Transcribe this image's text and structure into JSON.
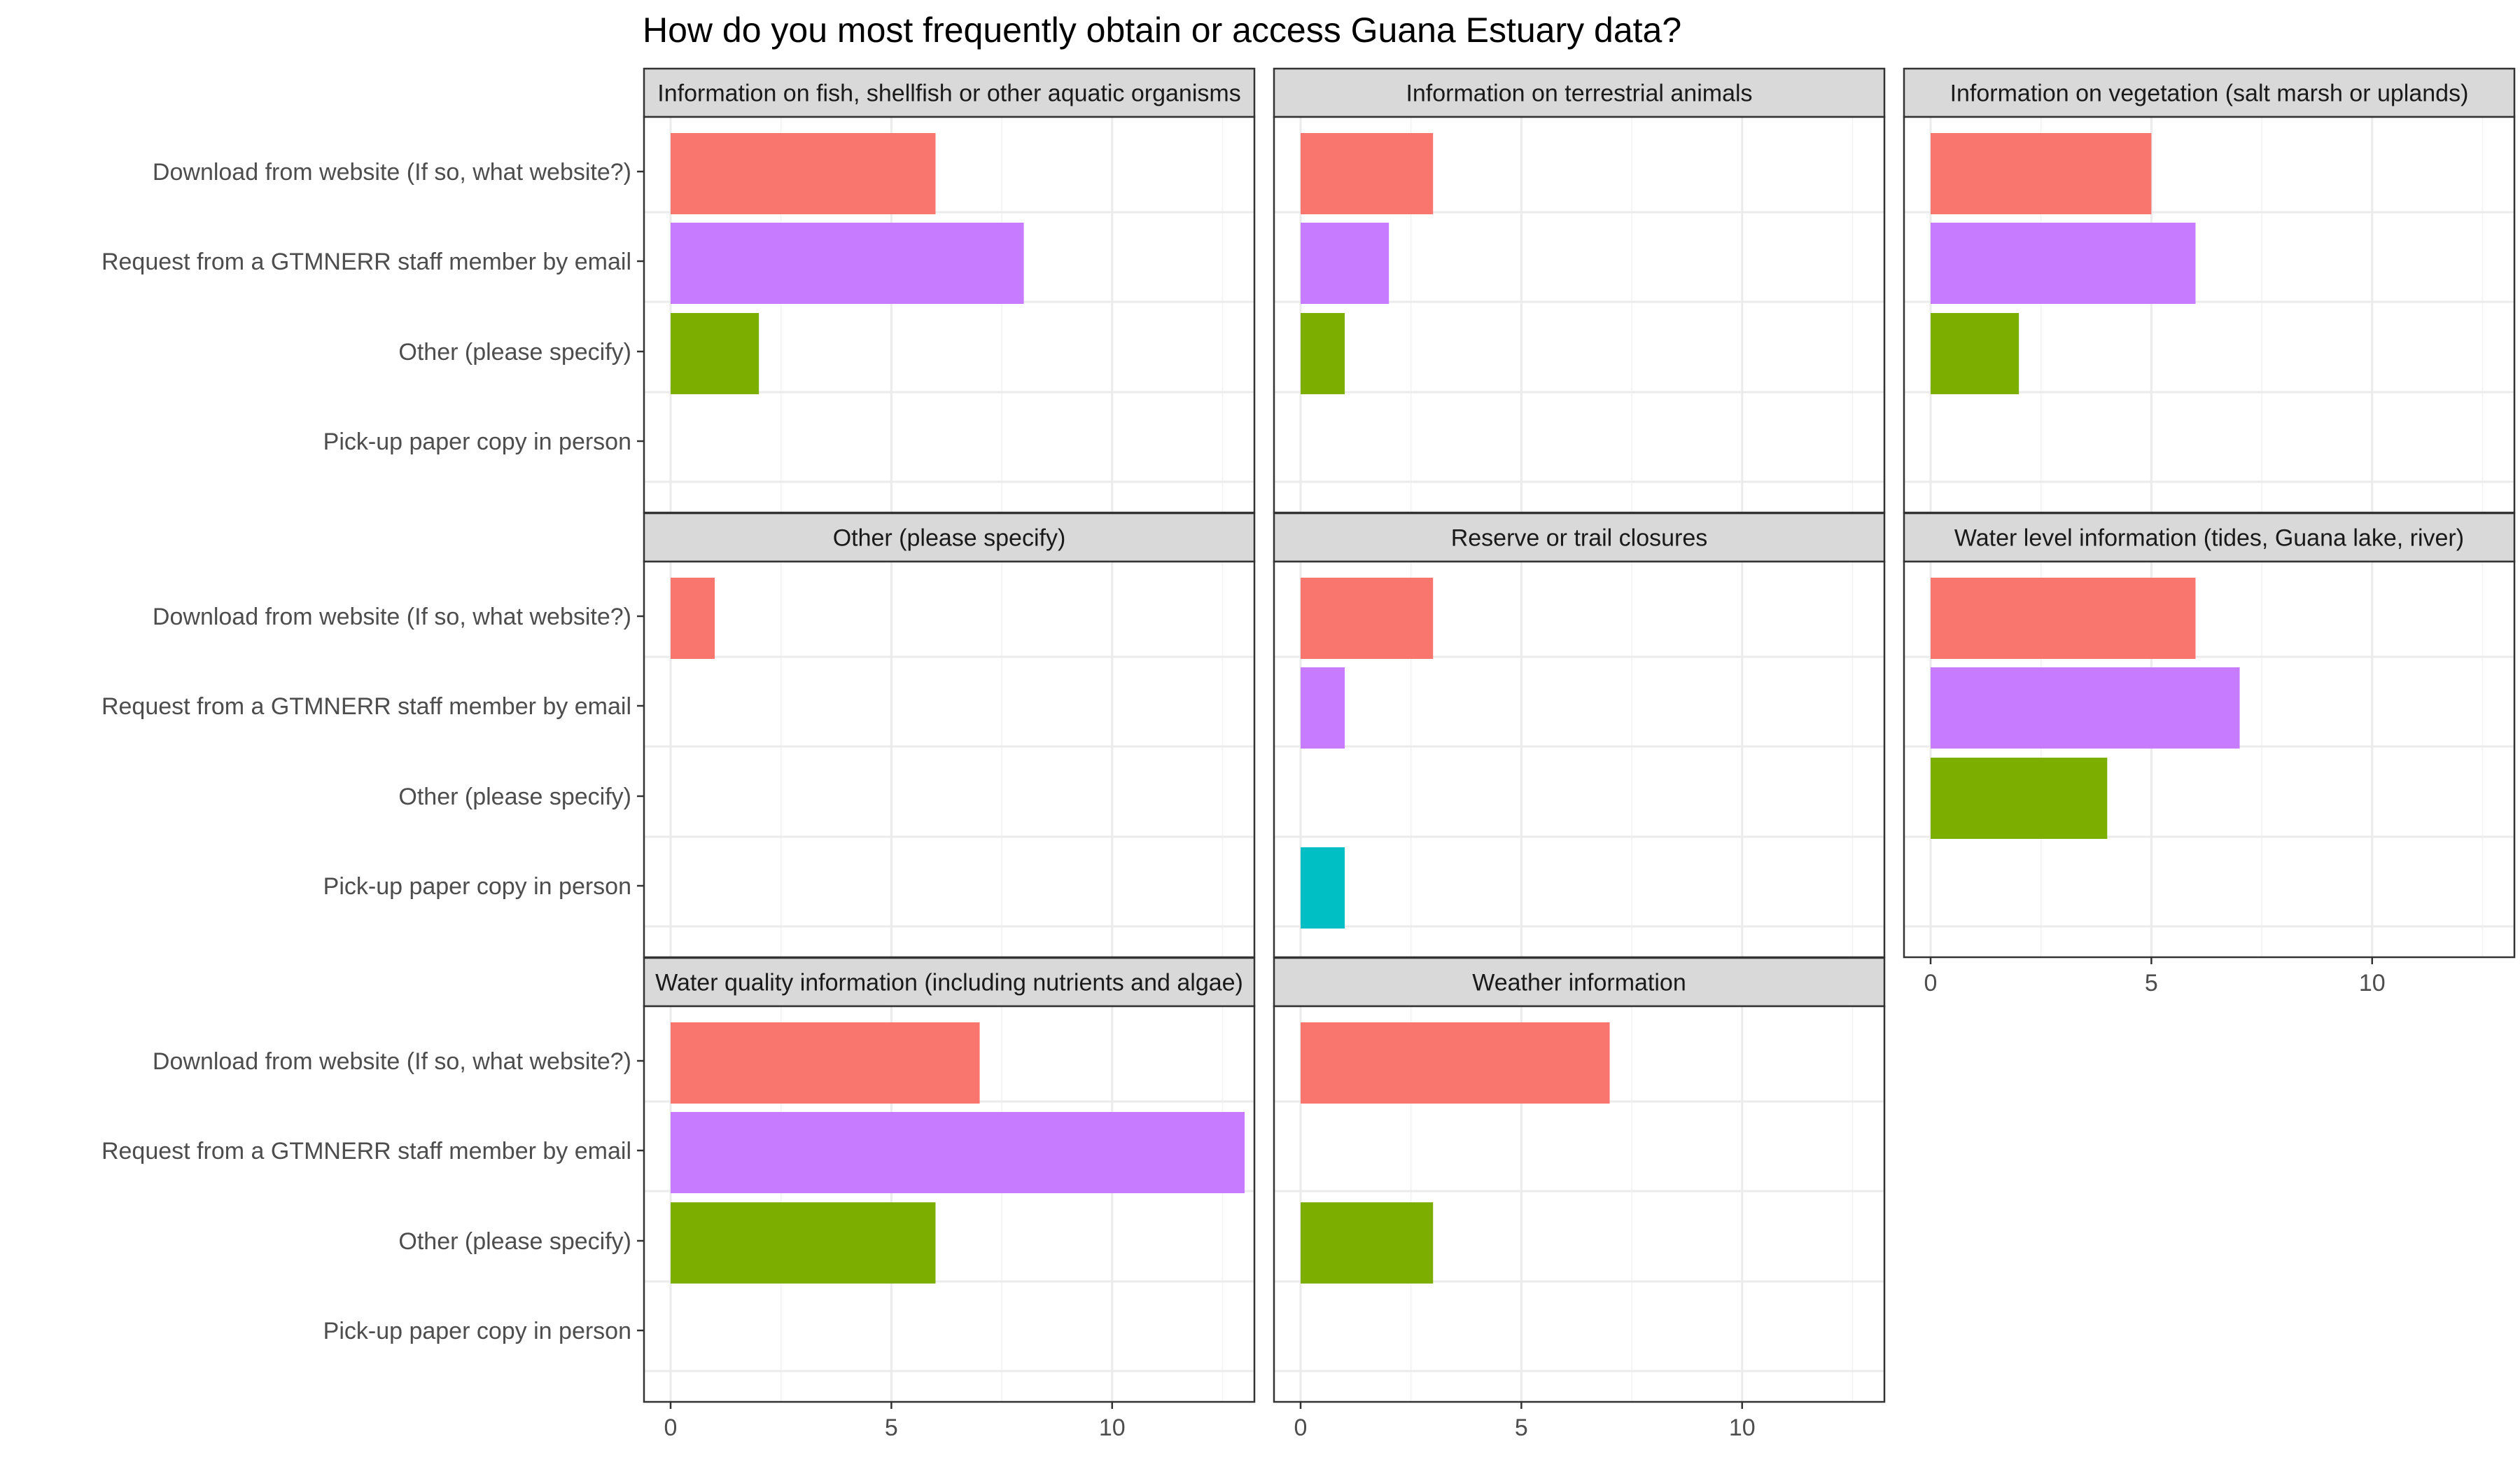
{
  "chart_data": {
    "type": "bar",
    "orientation": "horizontal",
    "faceted": true,
    "title": "How do you most frequently obtain or access Guana Estuary data?",
    "xlabel": "",
    "ylabel": "",
    "xlim": [
      0,
      13
    ],
    "x_ticks": [
      0,
      5,
      10
    ],
    "grid": true,
    "legend": "none",
    "categories": [
      "Download from website (If so, what website?)",
      "Request from a GTMNERR staff member by email",
      "Other (please specify)",
      "Pick-up paper copy in person"
    ],
    "category_colors": [
      "#F8766D",
      "#C77CFF",
      "#7CAE00",
      "#00BFC4"
    ],
    "panels": [
      {
        "title": "Information on fish, shellfish or other aquatic organisms",
        "values": [
          6,
          8,
          2,
          0
        ]
      },
      {
        "title": "Information on terrestrial animals",
        "values": [
          3,
          2,
          1,
          0
        ]
      },
      {
        "title": "Information on vegetation (salt marsh or uplands)",
        "values": [
          5,
          6,
          2,
          0
        ]
      },
      {
        "title": "Other (please specify)",
        "values": [
          1,
          0,
          0,
          0
        ]
      },
      {
        "title": "Reserve or trail closures",
        "values": [
          3,
          1,
          0,
          1
        ]
      },
      {
        "title": "Water level information (tides, Guana lake, river)",
        "values": [
          6,
          7,
          4,
          0
        ]
      },
      {
        "title": "Water quality information (including nutrients and algae)",
        "values": [
          7,
          13,
          6,
          0
        ]
      },
      {
        "title": "Weather information",
        "values": [
          7,
          0,
          3,
          0
        ]
      }
    ]
  }
}
